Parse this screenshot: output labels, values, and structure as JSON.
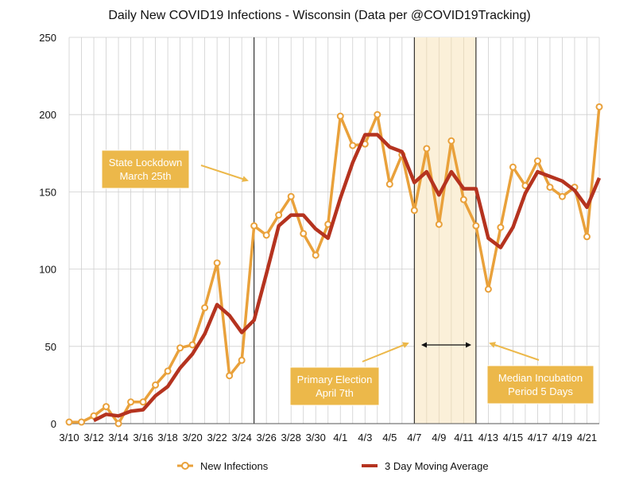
{
  "chart_data": {
    "type": "line",
    "title": "Daily New COVID19 Infections - Wisconsin (Data per @COVID19Tracking)",
    "xlabel": "",
    "ylabel": "",
    "ylim": [
      0,
      250
    ],
    "yticks": [
      "0",
      "50",
      "100",
      "150",
      "200",
      "250"
    ],
    "grid": true,
    "legend_position": "bottom",
    "x_labels": [
      "3/10",
      "3/12",
      "3/14",
      "3/16",
      "3/18",
      "3/20",
      "3/22",
      "3/24",
      "3/26",
      "3/28",
      "3/30",
      "4/1",
      "4/3",
      "4/5",
      "4/7",
      "4/9",
      "4/11",
      "4/13",
      "4/15",
      "4/17",
      "4/19",
      "4/21"
    ],
    "dates": [
      "3/10",
      "3/11",
      "3/12",
      "3/13",
      "3/14",
      "3/15",
      "3/16",
      "3/17",
      "3/18",
      "3/19",
      "3/20",
      "3/21",
      "3/22",
      "3/23",
      "3/24",
      "3/25",
      "3/26",
      "3/27",
      "3/28",
      "3/29",
      "3/30",
      "3/31",
      "4/1",
      "4/2",
      "4/3",
      "4/4",
      "4/5",
      "4/6",
      "4/7",
      "4/8",
      "4/9",
      "4/10",
      "4/11",
      "4/12",
      "4/13",
      "4/14",
      "4/15",
      "4/16",
      "4/17",
      "4/18",
      "4/19",
      "4/20",
      "4/21",
      "4/22"
    ],
    "series": [
      {
        "name": "New Infections",
        "color": "#e9a13b",
        "marker": "circle",
        "values": [
          1,
          1,
          5,
          11,
          0,
          14,
          14,
          25,
          34,
          49,
          51,
          75,
          104,
          31,
          41,
          128,
          122,
          135,
          147,
          123,
          109,
          129,
          199,
          180,
          181,
          200,
          155,
          174,
          138,
          178,
          129,
          183,
          145,
          128,
          87,
          127,
          166,
          154,
          170,
          153,
          147,
          153,
          121,
          205
        ]
      },
      {
        "name": "3 Day Moving Average",
        "color": "#b5331f",
        "marker": "none",
        "values": [
          null,
          null,
          2,
          6,
          5,
          8,
          9,
          18,
          24,
          36,
          45,
          58,
          77,
          70,
          59,
          67,
          97,
          128,
          135,
          135,
          126,
          120,
          146,
          169,
          187,
          187,
          179,
          176,
          156,
          163,
          148,
          163,
          152,
          152,
          120,
          114,
          127,
          149,
          163,
          160,
          157,
          151,
          140,
          159
        ]
      }
    ],
    "vertical_lines": [
      {
        "date": "3/25",
        "color": "#111111"
      },
      {
        "date": "4/7",
        "color": "#111111"
      },
      {
        "date": "4/12",
        "color": "#111111"
      }
    ],
    "shaded_region": {
      "from": "4/7",
      "to": "4/12",
      "color": "#fbf0d9"
    },
    "annotations": [
      {
        "lines": [
          "State Lockdown",
          "March 25th"
        ]
      },
      {
        "lines": [
          "Primary Election",
          "April 7th"
        ]
      },
      {
        "lines": [
          "Median Incubation",
          "Period 5 Days"
        ]
      }
    ]
  },
  "colors": {
    "annotation_fill": "#ecb84a",
    "arrow": "#ecb84a",
    "grid": "#cfcfcf",
    "axis": "#555555"
  }
}
